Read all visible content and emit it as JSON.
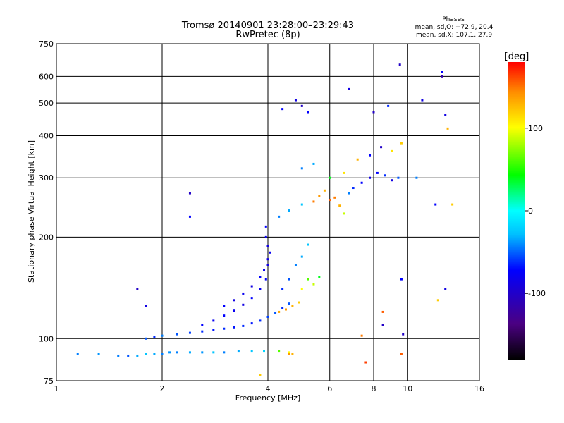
{
  "chart_data": {
    "type": "scatter",
    "title": "Tromsø 20140901 23:28:00–23:29:43",
    "subtitle": "RwPretec (8p)",
    "phase_box": {
      "heading": "Phases",
      "line_o": "mean, sd,O: −72.9, 20.4",
      "line_x": "mean, sd,X: 107.1, 27.9"
    },
    "xlabel": "Frequency [MHz]",
    "ylabel": "Stationary phase Virtual Height [km]",
    "x_scale": "log",
    "y_scale": "log",
    "xlim": [
      1,
      16
    ],
    "ylim": [
      75,
      750
    ],
    "x_ticks": [
      1,
      2,
      4,
      6,
      8,
      10,
      16
    ],
    "y_ticks": [
      75,
      100,
      200,
      300,
      400,
      500,
      600,
      750
    ],
    "grid": true,
    "colorbar": {
      "label": "[deg]",
      "range": [
        -180,
        180
      ],
      "ticks": [
        100,
        0,
        -100
      ],
      "colormap": [
        "#000000",
        "#4b0082",
        "#0000ff",
        "#00bfff",
        "#00ffff",
        "#00ff00",
        "#ffff00",
        "#ff8c00",
        "#ff0000"
      ]
    },
    "series": [
      {
        "points": [
          [
            1.15,
            90,
            -60
          ],
          [
            1.32,
            90,
            -55
          ],
          [
            1.5,
            89,
            -60
          ],
          [
            1.6,
            89,
            -70
          ],
          [
            1.7,
            89,
            -50
          ],
          [
            1.8,
            90,
            -40
          ],
          [
            1.9,
            90,
            -50
          ],
          [
            2.0,
            90,
            -60
          ],
          [
            2.1,
            91,
            -55
          ],
          [
            2.2,
            91,
            -60
          ],
          [
            2.4,
            91,
            -50
          ],
          [
            2.6,
            91,
            -55
          ],
          [
            2.8,
            91,
            -40
          ],
          [
            3.0,
            91,
            -60
          ],
          [
            3.3,
            92,
            -50
          ],
          [
            3.6,
            92,
            -40
          ],
          [
            3.9,
            92,
            -30
          ],
          [
            4.3,
            92,
            60
          ],
          [
            4.6,
            91,
            90
          ],
          [
            4.7,
            90,
            120
          ],
          [
            1.8,
            100,
            -70
          ],
          [
            1.9,
            101,
            -80
          ],
          [
            2.0,
            102,
            -60
          ],
          [
            2.2,
            103,
            -70
          ],
          [
            2.4,
            104,
            -75
          ],
          [
            2.6,
            105,
            -80
          ],
          [
            2.8,
            106,
            -85
          ],
          [
            3.0,
            107,
            -80
          ],
          [
            3.2,
            108,
            -85
          ],
          [
            3.4,
            109,
            -80
          ],
          [
            3.6,
            111,
            -85
          ],
          [
            3.8,
            113,
            -80
          ],
          [
            4.0,
            116,
            -75
          ],
          [
            4.2,
            119,
            -70
          ],
          [
            4.4,
            123,
            -80
          ],
          [
            4.6,
            127,
            -70
          ],
          [
            2.6,
            110,
            -90
          ],
          [
            2.8,
            113,
            -95
          ],
          [
            3.0,
            117,
            -90
          ],
          [
            3.2,
            121,
            -95
          ],
          [
            3.4,
            126,
            -100
          ],
          [
            3.6,
            132,
            -90
          ],
          [
            3.8,
            140,
            -95
          ],
          [
            3.95,
            150,
            -90
          ],
          [
            4.0,
            165,
            -100
          ],
          [
            4.05,
            180,
            -95
          ],
          [
            3.0,
            125,
            -90
          ],
          [
            3.2,
            130,
            -100
          ],
          [
            3.4,
            136,
            -95
          ],
          [
            3.6,
            143,
            -100
          ],
          [
            3.8,
            152,
            -90
          ],
          [
            3.9,
            160,
            -95
          ],
          [
            4.0,
            172,
            -100
          ],
          [
            4.0,
            188,
            -100
          ],
          [
            3.95,
            200,
            -95
          ],
          [
            3.95,
            215,
            -90
          ],
          [
            4.3,
            120,
            125
          ],
          [
            4.5,
            122,
            130
          ],
          [
            4.7,
            125,
            120
          ],
          [
            4.9,
            128,
            110
          ],
          [
            5.0,
            140,
            90
          ],
          [
            5.2,
            150,
            60
          ],
          [
            5.4,
            145,
            80
          ],
          [
            5.6,
            152,
            40
          ],
          [
            4.4,
            140,
            -80
          ],
          [
            4.6,
            150,
            -70
          ],
          [
            4.8,
            165,
            -60
          ],
          [
            5.0,
            175,
            -50
          ],
          [
            5.2,
            190,
            -40
          ],
          [
            4.3,
            230,
            -60
          ],
          [
            4.6,
            240,
            -50
          ],
          [
            5.0,
            250,
            -40
          ],
          [
            5.4,
            255,
            140
          ],
          [
            5.6,
            265,
            130
          ],
          [
            5.8,
            275,
            120
          ],
          [
            6.0,
            258,
            150
          ],
          [
            6.2,
            262,
            140
          ],
          [
            6.4,
            248,
            120
          ],
          [
            6.6,
            235,
            80
          ],
          [
            6.8,
            270,
            -60
          ],
          [
            7.0,
            280,
            -80
          ],
          [
            7.4,
            290,
            -90
          ],
          [
            7.8,
            300,
            -100
          ],
          [
            8.2,
            310,
            -90
          ],
          [
            8.6,
            305,
            -80
          ],
          [
            9.0,
            295,
            -100
          ],
          [
            9.4,
            300,
            -70
          ],
          [
            5.0,
            320,
            -60
          ],
          [
            5.4,
            330,
            -50
          ],
          [
            6.0,
            300,
            40
          ],
          [
            6.6,
            310,
            100
          ],
          [
            7.2,
            340,
            120
          ],
          [
            7.8,
            350,
            -90
          ],
          [
            8.4,
            370,
            -110
          ],
          [
            9.0,
            360,
            100
          ],
          [
            9.6,
            380,
            110
          ],
          [
            4.4,
            480,
            -90
          ],
          [
            4.8,
            510,
            -100
          ],
          [
            5.0,
            490,
            -110
          ],
          [
            5.2,
            470,
            -90
          ],
          [
            6.8,
            550,
            -100
          ],
          [
            8.0,
            470,
            -110
          ],
          [
            8.8,
            490,
            -80
          ],
          [
            9.5,
            650,
            -110
          ],
          [
            11.0,
            510,
            -100
          ],
          [
            12.5,
            600,
            -120
          ],
          [
            10.6,
            300,
            -60
          ],
          [
            12.5,
            620,
            -90
          ],
          [
            12.8,
            460,
            -100
          ],
          [
            12.0,
            250,
            -90
          ],
          [
            13.0,
            420,
            120
          ],
          [
            13.4,
            250,
            110
          ],
          [
            12.2,
            130,
            110
          ],
          [
            12.8,
            140,
            -100
          ],
          [
            9.6,
            150,
            -90
          ],
          [
            8.5,
            120,
            150
          ],
          [
            8.5,
            110,
            -110
          ],
          [
            9.7,
            103,
            -110
          ],
          [
            9.6,
            90,
            150
          ],
          [
            7.4,
            102,
            140
          ],
          [
            7.6,
            85,
            160
          ],
          [
            4.6,
            90,
            130
          ],
          [
            2.4,
            230,
            -90
          ],
          [
            2.4,
            270,
            -110
          ],
          [
            1.8,
            125,
            -100
          ],
          [
            1.7,
            140,
            -110
          ],
          [
            3.8,
            78,
            110
          ]
        ]
      }
    ]
  }
}
